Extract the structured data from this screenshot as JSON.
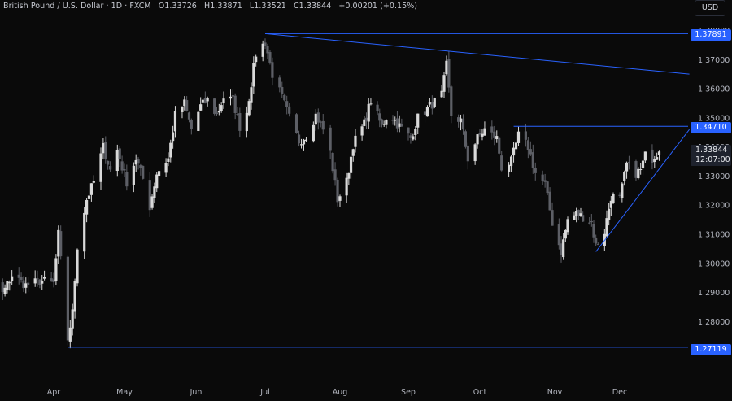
{
  "header": {
    "symbol": "British Pound / U.S. Dollar · 1D · FXCM",
    "open_label": "O",
    "open": "1.33726",
    "high_label": "H",
    "high": "1.33871",
    "low_label": "L",
    "low": "1.33521",
    "close_label": "C",
    "close": "1.33844",
    "change": "+0.00201 (+0.15%)"
  },
  "currency_button": "USD",
  "current_price": {
    "price": "1.33844",
    "countdown": "12:07:00"
  },
  "level_tags": [
    "1.37891",
    "1.34710",
    "1.27119"
  ],
  "colors": {
    "background": "#0a0a0a",
    "up": "#d9d9d9",
    "down": "#5d5f66",
    "lines": "#2962ff"
  },
  "chart_data": {
    "type": "candlestick",
    "title": "British Pound / U.S. Dollar · 1D · FXCM",
    "y_ticks": [
      "1.38000",
      "1.37000",
      "1.36000",
      "1.35000",
      "1.34000",
      "1.33000",
      "1.32000",
      "1.31000",
      "1.30000",
      "1.29000",
      "1.28000",
      "1.27000"
    ],
    "ylim": [
      1.2665,
      1.3818
    ],
    "x_ticks": [
      "Apr",
      "May",
      "Jun",
      "Jul",
      "Aug",
      "Sep",
      "Oct",
      "Nov",
      "Dec"
    ],
    "x_tick_dates": [
      "2025-04-01",
      "2025-05-01",
      "2025-06-01",
      "2025-07-01",
      "2025-08-01",
      "2025-09-01",
      "2025-10-01",
      "2025-11-01",
      "2025-12-01"
    ],
    "grid": false,
    "horizontal_levels": [
      {
        "start": "2025-07-01",
        "price": 1.37891
      },
      {
        "start": "2025-10-15",
        "price": 1.3471
      },
      {
        "start": "2025-04-07",
        "price": 1.27119
      }
    ],
    "trendlines": [
      {
        "name": "descending",
        "from": [
          "2025-07-01",
          1.37891
        ],
        "to": [
          "2025-12-31",
          1.365
        ]
      },
      {
        "name": "ascending",
        "from": [
          "2025-11-20",
          1.304
        ],
        "to": [
          "2025-12-31",
          1.346
        ]
      }
    ],
    "waypoints": [
      [
        "2025-02-24",
        1.288
      ],
      [
        "2025-02-27",
        1.2935
      ],
      [
        "2025-03-04",
        1.297
      ],
      [
        "2025-03-10",
        1.2895
      ],
      [
        "2025-03-14",
        1.296
      ],
      [
        "2025-03-20",
        1.2925
      ],
      [
        "2025-03-27",
        1.294
      ],
      [
        "2025-04-01",
        1.293
      ],
      [
        "2025-04-03",
        1.31
      ],
      [
        "2025-04-07",
        1.274
      ],
      [
        "2025-04-09",
        1.283
      ],
      [
        "2025-04-11",
        1.306
      ],
      [
        "2025-04-15",
        1.322
      ],
      [
        "2025-04-18",
        1.328
      ],
      [
        "2025-04-22",
        1.34
      ],
      [
        "2025-04-25",
        1.332
      ],
      [
        "2025-04-28",
        1.339
      ],
      [
        "2025-04-30",
        1.333
      ],
      [
        "2025-05-02",
        1.328
      ],
      [
        "2025-05-06",
        1.336
      ],
      [
        "2025-05-09",
        1.329
      ],
      [
        "2025-05-12",
        1.3195
      ],
      [
        "2025-05-15",
        1.331
      ],
      [
        "2025-05-20",
        1.336
      ],
      [
        "2025-05-23",
        1.351
      ],
      [
        "2025-05-27",
        1.355
      ],
      [
        "2025-05-30",
        1.346
      ],
      [
        "2025-06-03",
        1.354
      ],
      [
        "2025-06-06",
        1.356
      ],
      [
        "2025-06-10",
        1.351
      ],
      [
        "2025-06-13",
        1.357
      ],
      [
        "2025-06-17",
        1.356
      ],
      [
        "2025-06-20",
        1.347
      ],
      [
        "2025-06-23",
        1.352
      ],
      [
        "2025-06-25",
        1.362
      ],
      [
        "2025-06-27",
        1.372
      ],
      [
        "2025-07-01",
        1.376
      ],
      [
        "2025-07-04",
        1.365
      ],
      [
        "2025-07-08",
        1.357
      ],
      [
        "2025-07-11",
        1.35
      ],
      [
        "2025-07-15",
        1.342
      ],
      [
        "2025-07-18",
        1.344
      ],
      [
        "2025-07-22",
        1.351
      ],
      [
        "2025-07-25",
        1.346
      ],
      [
        "2025-07-28",
        1.338
      ],
      [
        "2025-07-31",
        1.322
      ],
      [
        "2025-08-04",
        1.328
      ],
      [
        "2025-08-07",
        1.341
      ],
      [
        "2025-08-12",
        1.348
      ],
      [
        "2025-08-15",
        1.356
      ],
      [
        "2025-08-20",
        1.347
      ],
      [
        "2025-08-23",
        1.352
      ],
      [
        "2025-08-27",
        1.348
      ],
      [
        "2025-09-02",
        1.343
      ],
      [
        "2025-09-05",
        1.35
      ],
      [
        "2025-09-10",
        1.354
      ],
      [
        "2025-09-15",
        1.358
      ],
      [
        "2025-09-17",
        1.368
      ],
      [
        "2025-09-19",
        1.351
      ],
      [
        "2025-09-23",
        1.349
      ],
      [
        "2025-09-26",
        1.336
      ],
      [
        "2025-09-30",
        1.343
      ],
      [
        "2025-10-03",
        1.346
      ],
      [
        "2025-10-08",
        1.343
      ],
      [
        "2025-10-10",
        1.333
      ],
      [
        "2025-10-14",
        1.335
      ],
      [
        "2025-10-17",
        1.344
      ],
      [
        "2025-10-21",
        1.34
      ],
      [
        "2025-10-24",
        1.331
      ],
      [
        "2025-10-28",
        1.327
      ],
      [
        "2025-10-31",
        1.314
      ],
      [
        "2025-11-04",
        1.304
      ],
      [
        "2025-11-07",
        1.315
      ],
      [
        "2025-11-11",
        1.317
      ],
      [
        "2025-11-14",
        1.316
      ],
      [
        "2025-11-18",
        1.314
      ],
      [
        "2025-11-20",
        1.306
      ],
      [
        "2025-11-24",
        1.311
      ],
      [
        "2025-11-27",
        1.323
      ],
      [
        "2025-12-01",
        1.322
      ],
      [
        "2025-12-04",
        1.334
      ],
      [
        "2025-12-08",
        1.331
      ],
      [
        "2025-12-10",
        1.332
      ],
      [
        "2025-12-12",
        1.337
      ],
      [
        "2025-12-15",
        1.336
      ],
      [
        "2025-12-17",
        1.338
      ],
      [
        "2025-12-18",
        1.3384
      ]
    ]
  }
}
